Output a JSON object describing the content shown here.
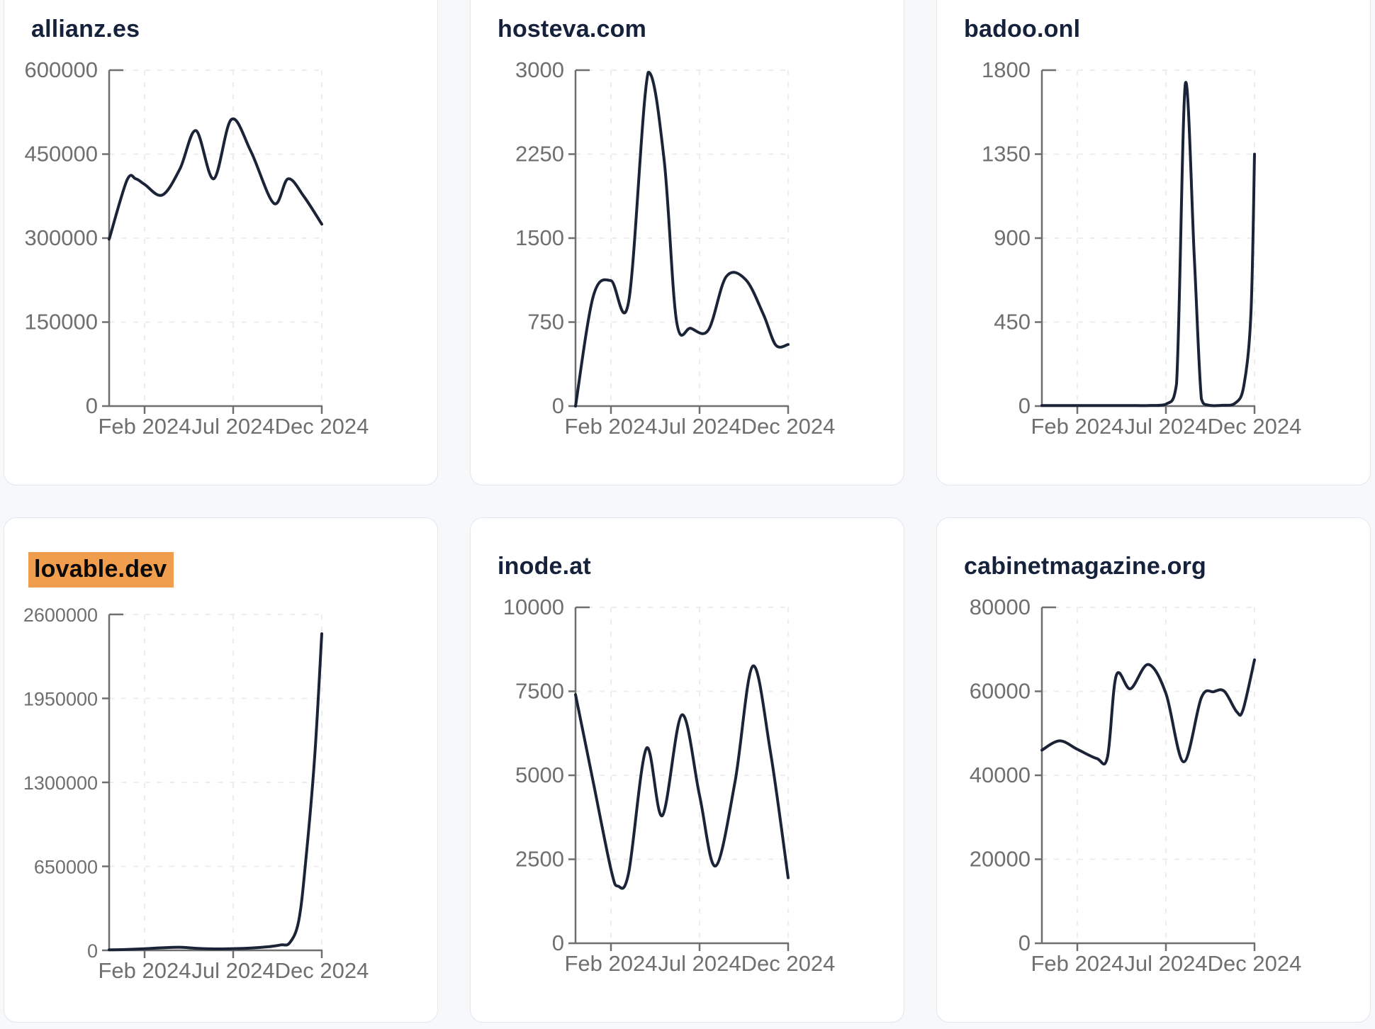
{
  "colors": {
    "line": "#1b2337",
    "title": "#16213c",
    "axis": "#6f6f6f",
    "tick_label": "#6f6f6f",
    "grid": "#ededee",
    "highlight": "#f09d4e",
    "card_background": "#ffffff",
    "card_border": "#e1e7f0",
    "page_background": "#f7f8fa"
  },
  "x_axis": {
    "domain_months": [
      -1,
      11
    ],
    "ticks": [
      {
        "x": 1,
        "label": "Feb 2024"
      },
      {
        "x": 6,
        "label": "Jul 2024"
      },
      {
        "x": 11,
        "label": "Dec 2024"
      }
    ]
  },
  "chart_data": [
    {
      "type": "line",
      "title": "allianz.es",
      "highlighted": false,
      "ylim": [
        0,
        600000
      ],
      "y_ticks": [
        0,
        150000,
        300000,
        450000,
        600000
      ],
      "x_tick_labels": [
        "Feb 2024",
        "Jul 2024",
        "Dec 2024"
      ],
      "points": [
        [
          -1,
          298000
        ],
        [
          0,
          403000
        ],
        [
          0.5,
          406000
        ],
        [
          1,
          396000
        ],
        [
          2,
          377000
        ],
        [
          3,
          424000
        ],
        [
          3.9,
          492000
        ],
        [
          4.9,
          406000
        ],
        [
          5.9,
          512000
        ],
        [
          7,
          455000
        ],
        [
          8.3,
          362000
        ],
        [
          9.1,
          406000
        ],
        [
          10,
          374000
        ],
        [
          11,
          325000
        ]
      ]
    },
    {
      "type": "line",
      "title": "hosteva.com",
      "highlighted": false,
      "ylim": [
        0,
        3000
      ],
      "y_ticks": [
        0,
        750,
        1500,
        2250,
        3000
      ],
      "x_tick_labels": [
        "Feb 2024",
        "Jul 2024",
        "Dec 2024"
      ],
      "points": [
        [
          -1,
          0
        ],
        [
          0,
          980
        ],
        [
          1,
          1120
        ],
        [
          2,
          935
        ],
        [
          3.1,
          2980
        ],
        [
          4,
          2200
        ],
        [
          4.7,
          760
        ],
        [
          5.5,
          695
        ],
        [
          6.5,
          680
        ],
        [
          7.5,
          1155
        ],
        [
          8.6,
          1130
        ],
        [
          9.6,
          820
        ],
        [
          10.3,
          545
        ],
        [
          11,
          550
        ]
      ]
    },
    {
      "type": "line",
      "title": "badoo.onl",
      "highlighted": false,
      "ylim": [
        0,
        1800
      ],
      "y_ticks": [
        0,
        450,
        900,
        1350,
        1800
      ],
      "x_tick_labels": [
        "Feb 2024",
        "Jul 2024",
        "Dec 2024"
      ],
      "points": [
        [
          -1,
          3
        ],
        [
          0,
          3
        ],
        [
          1,
          3
        ],
        [
          2,
          3
        ],
        [
          3,
          3
        ],
        [
          4,
          3
        ],
        [
          5,
          3
        ],
        [
          6,
          10
        ],
        [
          6.6,
          120
        ],
        [
          7.1,
          1730
        ],
        [
          7.6,
          800
        ],
        [
          8,
          40
        ],
        [
          8.4,
          5
        ],
        [
          9.2,
          4
        ],
        [
          9.9,
          15
        ],
        [
          10.4,
          110
        ],
        [
          10.8,
          500
        ],
        [
          11,
          1350
        ]
      ]
    },
    {
      "type": "line",
      "title": "lovable.dev",
      "highlighted": true,
      "ylim": [
        0,
        2600000
      ],
      "y_ticks": [
        0,
        650000,
        1300000,
        1950000,
        2600000
      ],
      "x_tick_labels": [
        "Feb 2024",
        "Jul 2024",
        "Dec 2024"
      ],
      "points": [
        [
          -1,
          4000
        ],
        [
          0,
          7000
        ],
        [
          1,
          12000
        ],
        [
          2,
          20000
        ],
        [
          3,
          24000
        ],
        [
          4,
          15000
        ],
        [
          5,
          11000
        ],
        [
          6,
          13000
        ],
        [
          7,
          18000
        ],
        [
          8,
          28000
        ],
        [
          8.7,
          42000
        ],
        [
          9.2,
          60000
        ],
        [
          9.7,
          230000
        ],
        [
          10.1,
          700000
        ],
        [
          10.6,
          1500000
        ],
        [
          11,
          2450000
        ]
      ]
    },
    {
      "type": "line",
      "title": "inode.at",
      "highlighted": false,
      "ylim": [
        0,
        10000
      ],
      "y_ticks": [
        0,
        2500,
        5000,
        7500,
        10000
      ],
      "x_tick_labels": [
        "Feb 2024",
        "Jul 2024",
        "Dec 2024"
      ],
      "points": [
        [
          -1,
          7400
        ],
        [
          0,
          4800
        ],
        [
          1,
          2200
        ],
        [
          1.4,
          1700
        ],
        [
          2,
          2100
        ],
        [
          3,
          5800
        ],
        [
          3.9,
          3800
        ],
        [
          5,
          6800
        ],
        [
          6,
          4400
        ],
        [
          6.9,
          2300
        ],
        [
          8,
          4800
        ],
        [
          9,
          8250
        ],
        [
          10,
          5700
        ],
        [
          11,
          1950
        ]
      ]
    },
    {
      "type": "line",
      "title": "cabinetmagazine.org",
      "highlighted": false,
      "ylim": [
        0,
        80000
      ],
      "y_ticks": [
        0,
        20000,
        40000,
        60000,
        80000
      ],
      "x_tick_labels": [
        "Feb 2024",
        "Jul 2024",
        "Dec 2024"
      ],
      "points": [
        [
          -1,
          46000
        ],
        [
          0,
          48200
        ],
        [
          1,
          46200
        ],
        [
          2.1,
          44000
        ],
        [
          2.7,
          44300
        ],
        [
          3.2,
          63800
        ],
        [
          4,
          60600
        ],
        [
          5,
          66400
        ],
        [
          6,
          59500
        ],
        [
          7,
          43200
        ],
        [
          8,
          58500
        ],
        [
          8.7,
          59900
        ],
        [
          9.3,
          60000
        ],
        [
          10,
          55100
        ],
        [
          10.35,
          55600
        ],
        [
          11,
          67500
        ]
      ]
    }
  ]
}
